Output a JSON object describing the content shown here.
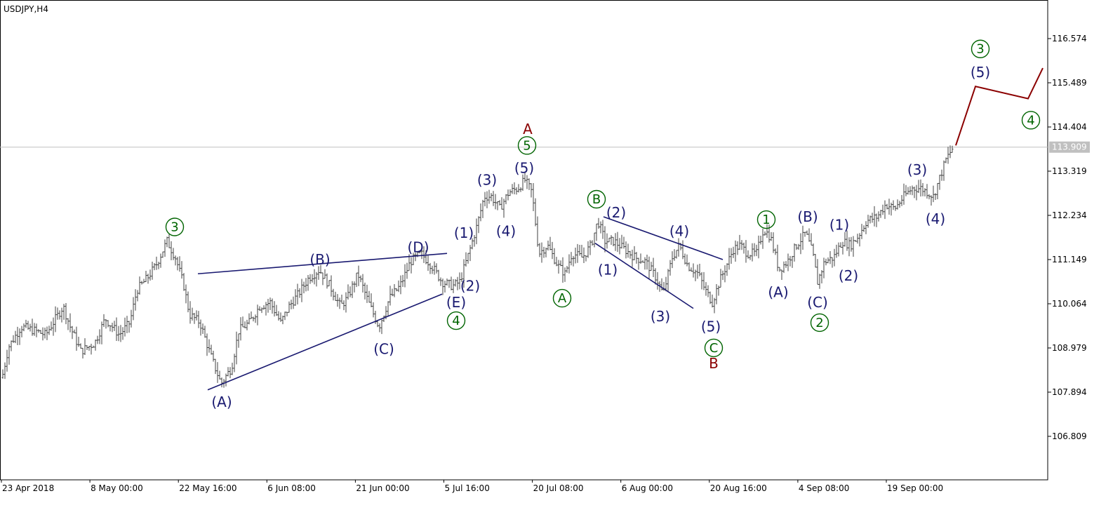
{
  "chart_data": {
    "type": "bar",
    "subtype": "ohlc",
    "symbol_label": "USDJPY,H4",
    "title": "",
    "xlabel": "",
    "ylabel": "",
    "x_tick_labels": [
      "23 Apr 2018",
      "8 May 00:00",
      "22 May 16:00",
      "6 Jun 08:00",
      "21 Jun 00:00",
      "5 Jul 16:00",
      "20 Jul 08:00",
      "6 Aug 00:00",
      "20 Aug 16:00",
      "4 Sep 08:00",
      "19 Sep 00:00"
    ],
    "y_ticks": [
      116.574,
      115.489,
      114.404,
      113.319,
      112.234,
      111.149,
      110.064,
      108.979,
      107.894,
      106.809
    ],
    "ylim": [
      106.17,
      117.3
    ],
    "xlim": [
      0,
      1495
    ],
    "current_price": {
      "value": 113.909,
      "label": "113.909"
    },
    "grid": false,
    "price_path": [
      [
        0,
        108.0
      ],
      [
        12,
        109.0
      ],
      [
        30,
        109.5
      ],
      [
        50,
        109.4
      ],
      [
        65,
        109.3
      ],
      [
        90,
        110.0
      ],
      [
        100,
        109.5
      ],
      [
        115,
        108.9
      ],
      [
        135,
        109.1
      ],
      [
        150,
        109.7
      ],
      [
        160,
        109.5
      ],
      [
        170,
        109.3
      ],
      [
        185,
        109.6
      ],
      [
        195,
        110.4
      ],
      [
        210,
        110.7
      ],
      [
        222,
        111.0
      ],
      [
        238,
        111.6
      ],
      [
        250,
        111.2
      ],
      [
        262,
        110.5
      ],
      [
        270,
        109.8
      ],
      [
        285,
        109.6
      ],
      [
        300,
        108.8
      ],
      [
        315,
        108.1
      ],
      [
        330,
        108.5
      ],
      [
        340,
        109.4
      ],
      [
        355,
        109.6
      ],
      [
        370,
        110.0
      ],
      [
        385,
        110.1
      ],
      [
        400,
        109.6
      ],
      [
        412,
        110.0
      ],
      [
        425,
        110.3
      ],
      [
        440,
        110.7
      ],
      [
        455,
        110.9
      ],
      [
        470,
        110.5
      ],
      [
        485,
        110.0
      ],
      [
        495,
        110.2
      ],
      [
        510,
        110.8
      ],
      [
        525,
        110.1
      ],
      [
        540,
        109.5
      ],
      [
        555,
        110.2
      ],
      [
        570,
        110.5
      ],
      [
        585,
        111.1
      ],
      [
        600,
        111.3
      ],
      [
        615,
        111.0
      ],
      [
        630,
        110.6
      ],
      [
        645,
        110.5
      ],
      [
        655,
        110.6
      ],
      [
        668,
        111.3
      ],
      [
        680,
        112.0
      ],
      [
        690,
        112.7
      ],
      [
        700,
        112.7
      ],
      [
        712,
        112.4
      ],
      [
        725,
        112.8
      ],
      [
        738,
        112.9
      ],
      [
        748,
        113.1
      ],
      [
        758,
        112.8
      ],
      [
        768,
        111.3
      ],
      [
        780,
        111.5
      ],
      [
        795,
        111.0
      ],
      [
        805,
        110.8
      ],
      [
        815,
        111.3
      ],
      [
        830,
        111.2
      ],
      [
        842,
        111.5
      ],
      [
        852,
        112.1
      ],
      [
        862,
        111.6
      ],
      [
        875,
        111.6
      ],
      [
        890,
        111.4
      ],
      [
        905,
        111.2
      ],
      [
        920,
        111.1
      ],
      [
        935,
        110.7
      ],
      [
        945,
        110.3
      ],
      [
        958,
        111.2
      ],
      [
        968,
        111.5
      ],
      [
        980,
        111.0
      ],
      [
        995,
        110.8
      ],
      [
        1005,
        110.4
      ],
      [
        1015,
        110.1
      ],
      [
        1025,
        110.6
      ],
      [
        1035,
        111.0
      ],
      [
        1045,
        111.4
      ],
      [
        1055,
        111.5
      ],
      [
        1065,
        111.3
      ],
      [
        1078,
        111.3
      ],
      [
        1088,
        111.9
      ],
      [
        1098,
        111.7
      ],
      [
        1110,
        110.9
      ],
      [
        1122,
        111.1
      ],
      [
        1135,
        111.5
      ],
      [
        1148,
        111.8
      ],
      [
        1158,
        111.3
      ],
      [
        1165,
        110.6
      ],
      [
        1175,
        111.1
      ],
      [
        1188,
        111.2
      ],
      [
        1200,
        111.6
      ],
      [
        1212,
        111.5
      ],
      [
        1222,
        111.7
      ],
      [
        1235,
        112.1
      ],
      [
        1250,
        112.2
      ],
      [
        1262,
        112.5
      ],
      [
        1275,
        112.4
      ],
      [
        1288,
        112.7
      ],
      [
        1300,
        112.9
      ],
      [
        1312,
        112.9
      ],
      [
        1322,
        112.8
      ],
      [
        1330,
        112.7
      ],
      [
        1338,
        113.1
      ],
      [
        1348,
        113.6
      ],
      [
        1358,
        113.9
      ]
    ],
    "forecast_path": [
      [
        1362,
        113.95
      ],
      [
        1390,
        115.4
      ],
      [
        1465,
        115.1
      ],
      [
        1486,
        115.85
      ]
    ],
    "trendlines": [
      {
        "from": [
          282,
          110.8
        ],
        "to": [
          637,
          111.3
        ]
      },
      {
        "from": [
          296,
          107.95
        ],
        "to": [
          630,
          110.3
        ]
      },
      {
        "from": [
          860,
          112.2
        ],
        "to": [
          1030,
          111.15
        ]
      },
      {
        "from": [
          848,
          111.55
        ],
        "to": [
          988,
          109.95
        ]
      }
    ],
    "wave_labels": [
      {
        "text": "3",
        "style": "circle",
        "at": [
          249,
          111.95
        ],
        "color": "#006400"
      },
      {
        "text": "(A)",
        "style": "plain",
        "at": [
          316,
          107.65
        ],
        "color": "#191970"
      },
      {
        "text": "(B)",
        "style": "plain",
        "at": [
          456,
          111.15
        ],
        "color": "#191970"
      },
      {
        "text": "(C)",
        "style": "plain",
        "at": [
          547,
          108.95
        ],
        "color": "#191970"
      },
      {
        "text": "(D)",
        "style": "plain",
        "at": [
          596,
          111.45
        ],
        "color": "#191970"
      },
      {
        "text": "(E)",
        "style": "plain",
        "at": [
          650,
          110.1
        ],
        "color": "#191970"
      },
      {
        "text": "4",
        "style": "circle",
        "at": [
          650,
          109.65
        ],
        "color": "#006400"
      },
      {
        "text": "(1)",
        "style": "plain",
        "at": [
          661,
          111.8
        ],
        "color": "#191970"
      },
      {
        "text": "(2)",
        "style": "plain",
        "at": [
          670,
          110.5
        ],
        "color": "#191970"
      },
      {
        "text": "(3)",
        "style": "plain",
        "at": [
          694,
          113.1
        ],
        "color": "#191970"
      },
      {
        "text": "(4)",
        "style": "plain",
        "at": [
          721,
          111.85
        ],
        "color": "#191970"
      },
      {
        "text": "(5)",
        "style": "plain",
        "at": [
          747,
          113.4
        ],
        "color": "#191970"
      },
      {
        "text": "5",
        "style": "circle",
        "at": [
          751,
          113.95
        ],
        "color": "#006400"
      },
      {
        "text": "A",
        "style": "plain",
        "at": [
          752,
          114.35
        ],
        "color": "#8b0000"
      },
      {
        "text": "A",
        "style": "circle",
        "at": [
          801,
          110.2
        ],
        "color": "#006400"
      },
      {
        "text": "B",
        "style": "circle",
        "at": [
          850,
          112.63
        ],
        "color": "#006400"
      },
      {
        "text": "(2)",
        "style": "plain",
        "at": [
          878,
          112.3
        ],
        "color": "#191970"
      },
      {
        "text": "(1)",
        "style": "plain",
        "at": [
          866,
          110.9
        ],
        "color": "#191970"
      },
      {
        "text": "(3)",
        "style": "plain",
        "at": [
          941,
          109.75
        ],
        "color": "#191970"
      },
      {
        "text": "(4)",
        "style": "plain",
        "at": [
          968,
          111.85
        ],
        "color": "#191970"
      },
      {
        "text": "(5)",
        "style": "plain",
        "at": [
          1013,
          109.5
        ],
        "color": "#191970"
      },
      {
        "text": "C",
        "style": "circle",
        "at": [
          1017,
          108.98
        ],
        "color": "#006400"
      },
      {
        "text": "B",
        "style": "plain",
        "at": [
          1017,
          108.6
        ],
        "color": "#8b0000"
      },
      {
        "text": "1",
        "style": "circle",
        "at": [
          1092,
          112.13
        ],
        "color": "#006400"
      },
      {
        "text": "(A)",
        "style": "plain",
        "at": [
          1109,
          110.35
        ],
        "color": "#191970"
      },
      {
        "text": "(B)",
        "style": "plain",
        "at": [
          1151,
          112.2
        ],
        "color": "#191970"
      },
      {
        "text": "(1)",
        "style": "plain",
        "at": [
          1196,
          112.0
        ],
        "color": "#191970"
      },
      {
        "text": "(2)",
        "style": "plain",
        "at": [
          1209,
          110.75
        ],
        "color": "#191970"
      },
      {
        "text": "(C)",
        "style": "plain",
        "at": [
          1165,
          110.1
        ],
        "color": "#191970"
      },
      {
        "text": "2",
        "style": "circle",
        "at": [
          1168,
          109.6
        ],
        "color": "#006400"
      },
      {
        "text": "(3)",
        "style": "plain",
        "at": [
          1307,
          113.35
        ],
        "color": "#191970"
      },
      {
        "text": "(4)",
        "style": "plain",
        "at": [
          1333,
          112.15
        ],
        "color": "#191970"
      },
      {
        "text": "3",
        "style": "circle",
        "at": [
          1397,
          116.32
        ],
        "color": "#006400"
      },
      {
        "text": "(5)",
        "style": "plain",
        "at": [
          1397,
          115.75
        ],
        "color": "#191970"
      },
      {
        "text": "4",
        "style": "circle",
        "at": [
          1469,
          114.57
        ],
        "color": "#006400"
      }
    ],
    "colors": {
      "bars": "#404040",
      "trendline": "#191970",
      "forecast": "#8b0000",
      "wave_minor": "#191970",
      "wave_primary": "#006400",
      "wave_cycle": "#8b0000",
      "current_price_line": "#c0c0c0",
      "current_price_tag": "#c0c0c0"
    }
  }
}
